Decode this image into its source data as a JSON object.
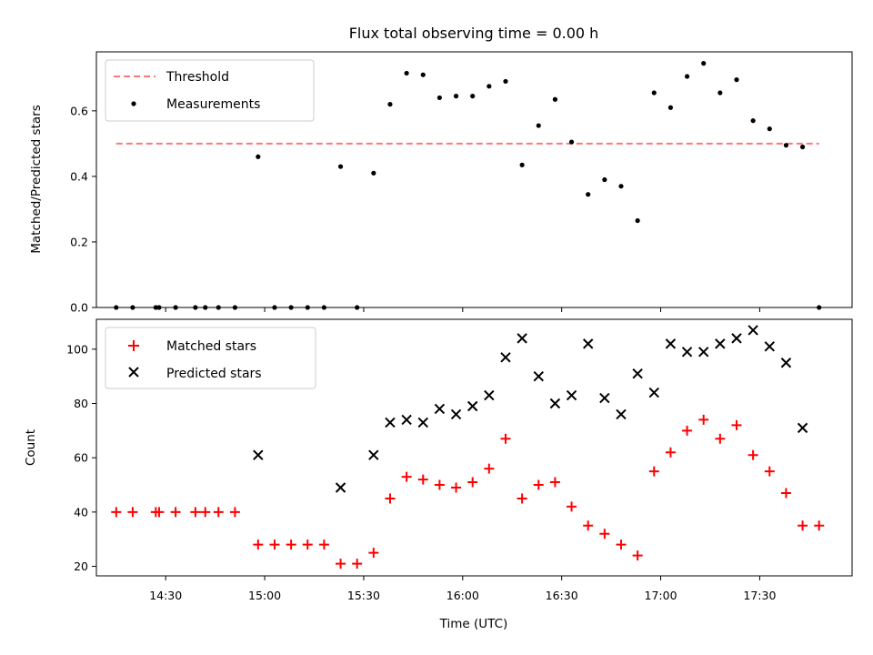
{
  "chart_data": {
    "title": "Flux total observing time = 0.00 h",
    "xlabel": "Time (UTC)",
    "x_ticks": [
      "14:30",
      "15:00",
      "15:30",
      "16:00",
      "16:30",
      "17:00",
      "17:30"
    ],
    "x_tick_values": [
      "14:30",
      "15:00",
      "15:30",
      "16:00",
      "16:30",
      "17:00",
      "17:30"
    ],
    "xlim": [
      "14:09",
      "17:58"
    ],
    "time": [
      "14:15",
      "14:20",
      "14:27",
      "14:28",
      "14:33",
      "14:39",
      "14:42",
      "14:46",
      "14:51",
      "14:58",
      "15:03",
      "15:08",
      "15:13",
      "15:18",
      "15:23",
      "15:28",
      "15:33",
      "15:38",
      "15:43",
      "15:48",
      "15:53",
      "15:58",
      "16:03",
      "16:08",
      "16:13",
      "16:18",
      "16:23",
      "16:28",
      "16:33",
      "16:38",
      "16:43",
      "16:48",
      "16:53",
      "16:58",
      "17:03",
      "17:08",
      "17:13",
      "17:18",
      "17:23",
      "17:28",
      "17:33",
      "17:38",
      "17:43",
      "17:48"
    ],
    "panels": [
      {
        "type": "scatter",
        "ylabel": "Matched/Predicted stars",
        "ylim": [
          0,
          0.78
        ],
        "y_ticks": [
          0.0,
          0.2,
          0.4,
          0.6
        ],
        "legend_position": "upper-left",
        "threshold": {
          "name": "Threshold",
          "value": 0.5,
          "color": "#ff7777",
          "x_start": "14:15",
          "x_end": "17:48"
        },
        "series": [
          {
            "name": "Measurements",
            "color": "#000000",
            "marker": "dot",
            "values": [
              0,
              0,
              0,
              0,
              0,
              0,
              0,
              0,
              0,
              0.46,
              0,
              0,
              0,
              0,
              0.43,
              0,
              0.41,
              0.62,
              0.715,
              0.71,
              0.64,
              0.645,
              0.645,
              0.675,
              0.69,
              0.435,
              0.555,
              0.635,
              0.505,
              0.345,
              0.39,
              0.37,
              0.265,
              0.655,
              0.61,
              0.705,
              0.745,
              0.655,
              0.695,
              0.57,
              0.545,
              0.495,
              0.49,
              0
            ]
          }
        ]
      },
      {
        "type": "scatter",
        "ylabel": "Count",
        "ylim": [
          16.5,
          111
        ],
        "y_ticks": [
          20,
          40,
          60,
          80,
          100
        ],
        "legend_position": "upper-left",
        "series": [
          {
            "name": "Matched stars",
            "color": "#ff0000",
            "marker": "plus",
            "values": [
              40,
              40,
              40,
              40,
              40,
              40,
              40,
              40,
              40,
              28,
              28,
              28,
              28,
              28,
              21,
              21,
              25,
              45,
              53,
              52,
              50,
              49,
              51,
              56,
              67,
              45,
              50,
              51,
              42,
              35,
              32,
              28,
              24,
              55,
              62,
              70,
              74,
              67,
              72,
              61,
              55,
              47,
              35,
              35
            ]
          },
          {
            "name": "Predicted stars",
            "color": "#000000",
            "marker": "x",
            "values": [
              null,
              null,
              null,
              null,
              null,
              null,
              null,
              null,
              null,
              61,
              null,
              null,
              null,
              null,
              49,
              null,
              61,
              73,
              74,
              73,
              78,
              76,
              79,
              83,
              97,
              104,
              90,
              80,
              83,
              102,
              82,
              76,
              91,
              84,
              102,
              99,
              99,
              102,
              104,
              107,
              101,
              95,
              71,
              null
            ]
          }
        ]
      }
    ]
  }
}
